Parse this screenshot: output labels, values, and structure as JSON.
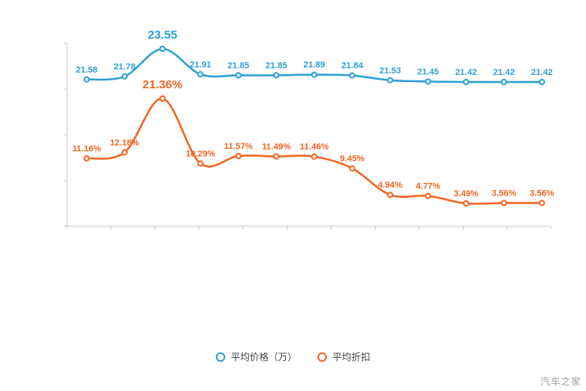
{
  "chart_data": {
    "type": "line",
    "x_count": 13,
    "categories": [
      "",
      "",
      "",
      "",
      "",
      "",
      "",
      "",
      "",
      "",
      "",
      "",
      ""
    ],
    "grid": false,
    "legend_position": "bottom",
    "series": [
      {
        "name": "平均价格（万）",
        "color": "#2E9FD6",
        "unit": "万",
        "values": [
          21.58,
          21.78,
          23.55,
          21.91,
          21.85,
          21.85,
          21.89,
          21.84,
          21.53,
          21.45,
          21.42,
          21.42,
          21.42
        ],
        "labels": [
          "21.58",
          "21.78",
          "23.55",
          "21.91",
          "21.85",
          "21.85",
          "21.89",
          "21.84",
          "21.53",
          "21.45",
          "21.42",
          "21.42",
          "21.42"
        ],
        "peak_index": 2
      },
      {
        "name": "平均折扣",
        "color": "#F26522",
        "unit": "%",
        "values": [
          11.16,
          12.18,
          21.36,
          10.29,
          11.57,
          11.49,
          11.46,
          9.45,
          4.94,
          4.77,
          3.49,
          3.56,
          3.56
        ],
        "labels": [
          "11.16%",
          "12.18%",
          "21.36%",
          "10.29%",
          "11.57%",
          "11.49%",
          "11.46%",
          "9.45%",
          "4.94%",
          "4.77%",
          "3.49%",
          "3.56%",
          "3.56%"
        ],
        "peak_index": 2
      }
    ]
  },
  "legend": {
    "items": [
      {
        "label": "平均价格（万）",
        "color": "#2E9FD6"
      },
      {
        "label": "平均折扣",
        "color": "#F26522"
      }
    ]
  },
  "watermark": "汽车之家"
}
